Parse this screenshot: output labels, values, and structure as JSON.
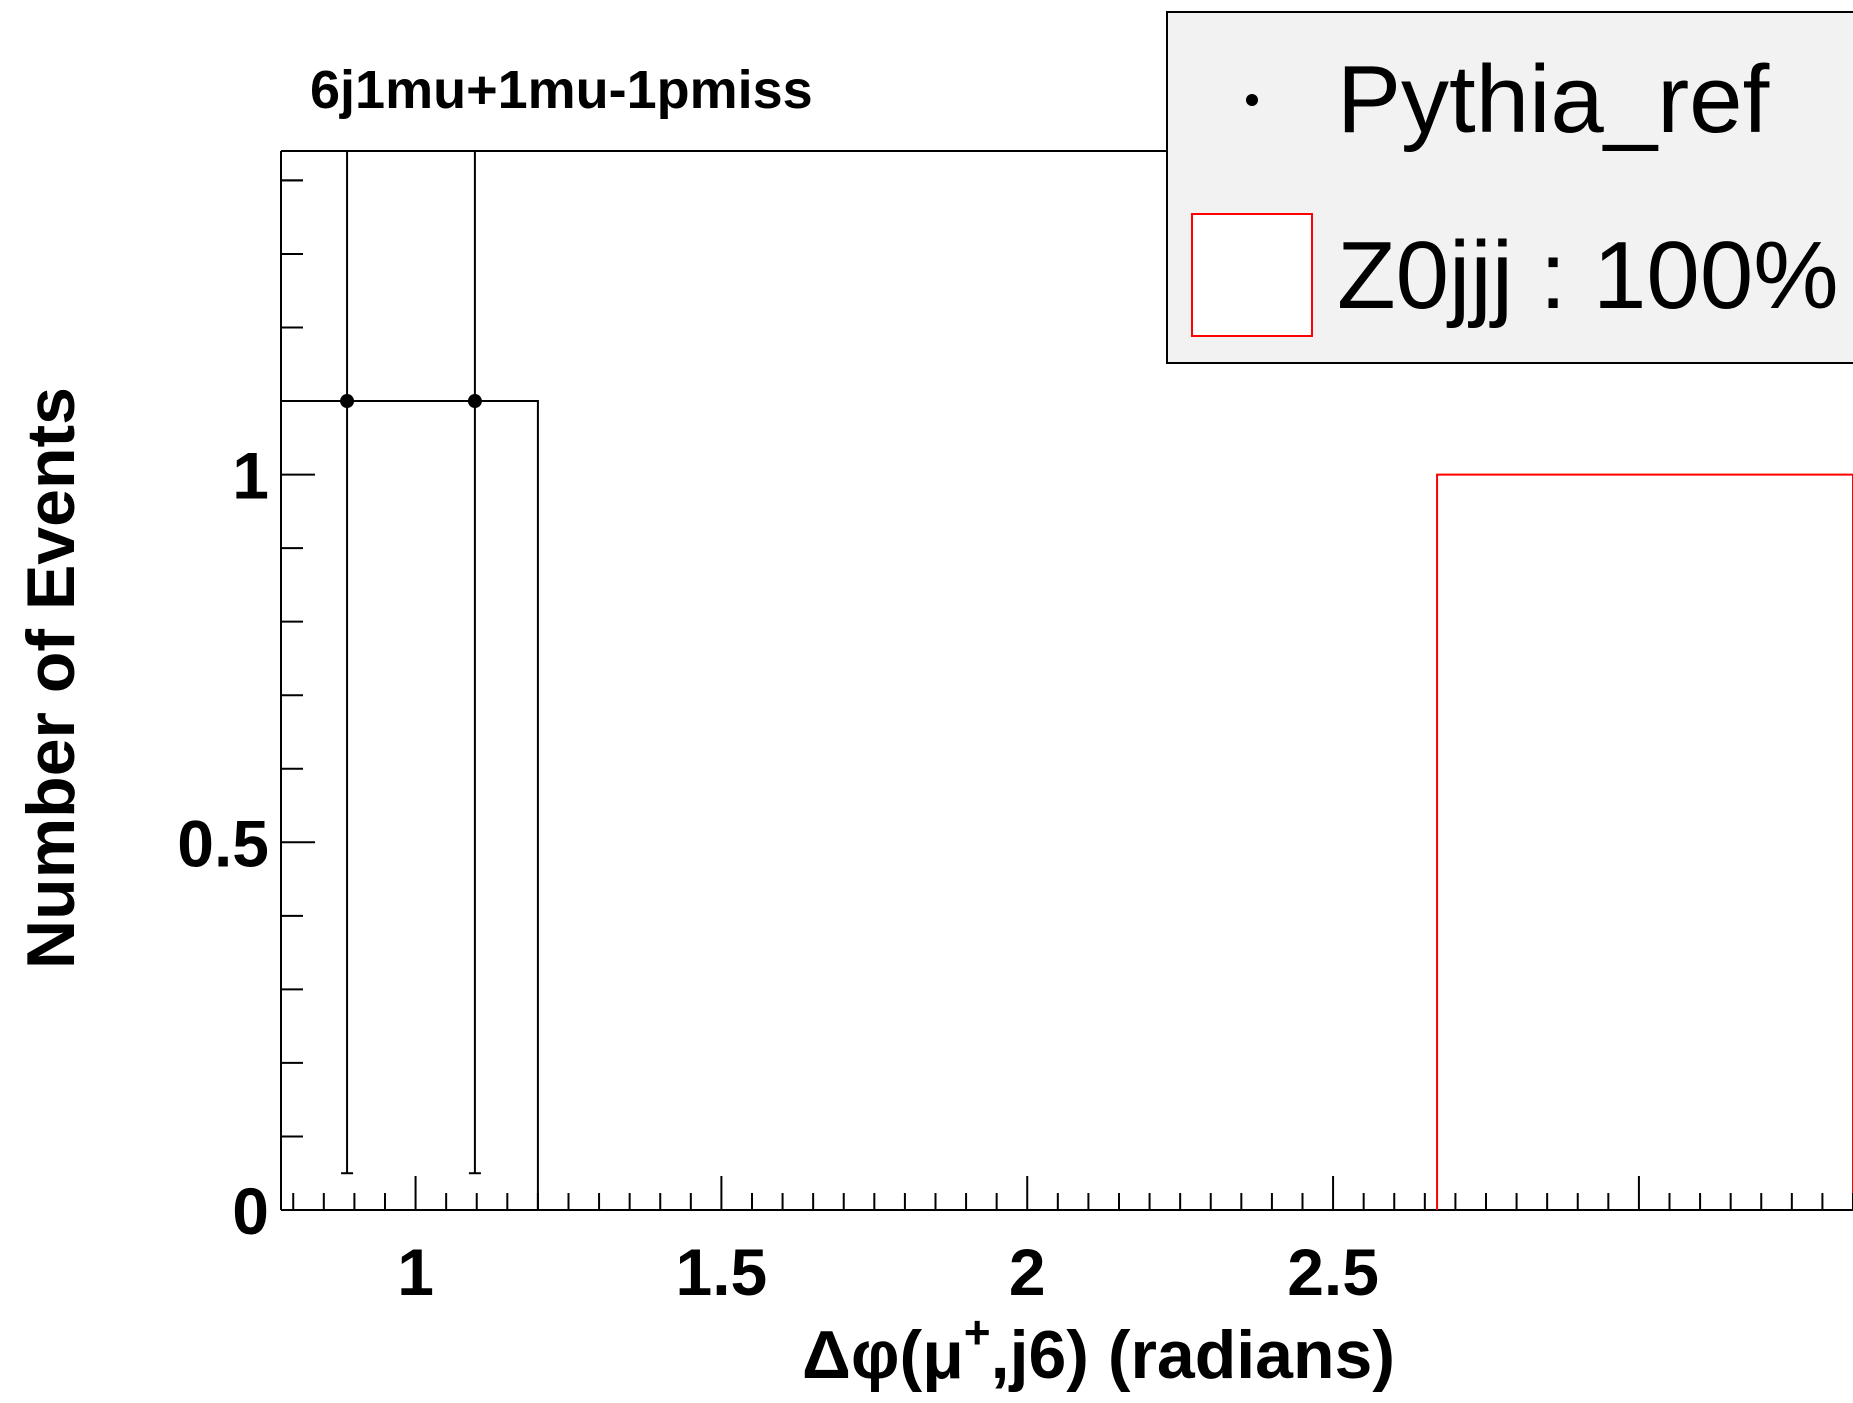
{
  "chart_data": {
    "type": "bar",
    "title": "6j1mu+1mu-1pmiss",
    "xlabel": {
      "prefix": "Δφ(μ",
      "superscript": "+",
      "suffix": ",j6) (radians)"
    },
    "ylabel": "Number of Events",
    "xlim": [
      0.78,
      3.35
    ],
    "ylim": [
      0,
      1.44
    ],
    "x_ticks": [
      1,
      1.5,
      2,
      2.5
    ],
    "x_tick_labels": [
      "1",
      "1.5",
      "2",
      "2.5"
    ],
    "y_ticks": [
      0,
      0.5,
      1
    ],
    "y_tick_labels": [
      "0",
      "0.5",
      "1"
    ],
    "grid": false,
    "legend_position": "top-right",
    "series": [
      {
        "name": "Pythia_ref",
        "kind": "points-with-errors",
        "color": "#000000",
        "points": [
          {
            "x": 0.888,
            "y": 1.1,
            "err_low": 1.05,
            "err_high": 1.44
          },
          {
            "x": 1.097,
            "y": 1.1,
            "err_low": 1.05,
            "err_high": 1.44
          }
        ]
      },
      {
        "name": "Pythia_ref histogram",
        "kind": "step-histogram",
        "color": "#000000",
        "bins": [
          {
            "x_low": 0.78,
            "x_high": 1.2,
            "value": 1.1
          }
        ]
      },
      {
        "name": "Z0jjj : 100%",
        "kind": "step-histogram",
        "color": "#ff0000",
        "bins": [
          {
            "x_low": 2.67,
            "x_high": 3.35,
            "value": 1.0
          }
        ]
      }
    ]
  }
}
